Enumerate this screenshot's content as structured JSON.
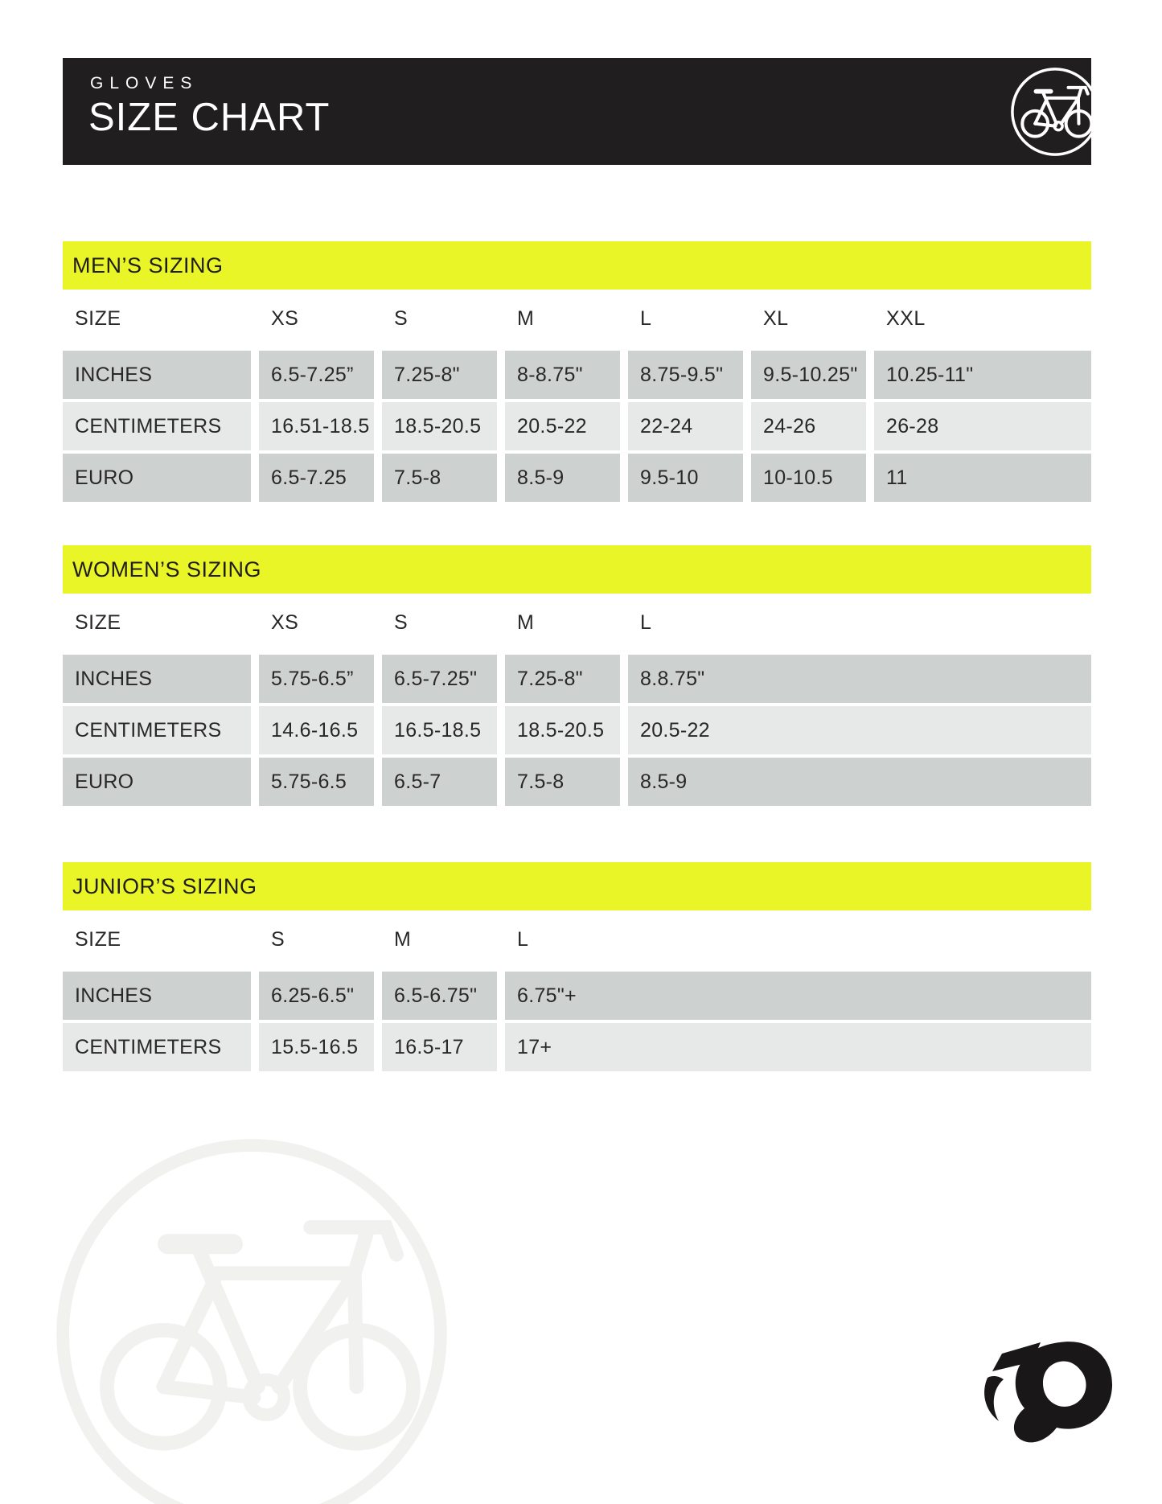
{
  "header": {
    "eyebrow": "GLOVES",
    "title": "SIZE CHART",
    "icon": "bicycle-circle-icon"
  },
  "colors": {
    "banner_black": "#211e1f",
    "accent_yellow": "#e9f527",
    "row_dark_gray": "#cdd1d0",
    "row_light_gray": "#e7e9e8",
    "text": "#2a2727"
  },
  "sections": [
    {
      "id": "mens",
      "title": "MEN’S SIZING",
      "columns": [
        "SIZE",
        "XS",
        "S",
        "M",
        "L",
        "XL",
        "XXL"
      ],
      "rows": [
        {
          "label": "INCHES",
          "values": [
            "6.5-7.25”",
            "7.25-8\"",
            "8-8.75\"",
            "8.75-9.5\"",
            "9.5-10.25\"",
            "10.25-11\""
          ]
        },
        {
          "label": "CENTIMETERS",
          "values": [
            "16.51-18.5",
            "18.5-20.5",
            "20.5-22",
            "22-24",
            "24-26",
            "26-28"
          ]
        },
        {
          "label": "EURO",
          "values": [
            "6.5-7.25",
            "7.5-8",
            "8.5-9",
            "9.5-10",
            "10-10.5",
            "11"
          ]
        }
      ]
    },
    {
      "id": "womens",
      "title": "WOMEN’S SIZING",
      "columns": [
        "SIZE",
        "XS",
        "S",
        "M",
        "L"
      ],
      "rows": [
        {
          "label": "INCHES",
          "values": [
            "5.75-6.5”",
            "6.5-7.25\"",
            "7.25-8\"",
            "8.8.75\""
          ]
        },
        {
          "label": "CENTIMETERS",
          "values": [
            "14.6-16.5",
            "16.5-18.5",
            "18.5-20.5",
            "20.5-22"
          ]
        },
        {
          "label": "EURO",
          "values": [
            "5.75-6.5",
            "6.5-7",
            "7.5-8",
            "8.5-9"
          ]
        }
      ]
    },
    {
      "id": "juniors",
      "title": "JUNIOR’S SIZING",
      "columns": [
        "SIZE",
        "S",
        "M",
        "L"
      ],
      "rows": [
        {
          "label": "INCHES",
          "values": [
            "6.25-6.5\"",
            "6.5-6.75\"",
            "6.75\"+"
          ]
        },
        {
          "label": "CENTIMETERS",
          "values": [
            "15.5-16.5",
            "16.5-17",
            "17+"
          ]
        }
      ]
    }
  ],
  "footer": {
    "watermark_icon": "bicycle-circle-watermark",
    "logo": "pearl-izumi-p-logo"
  }
}
